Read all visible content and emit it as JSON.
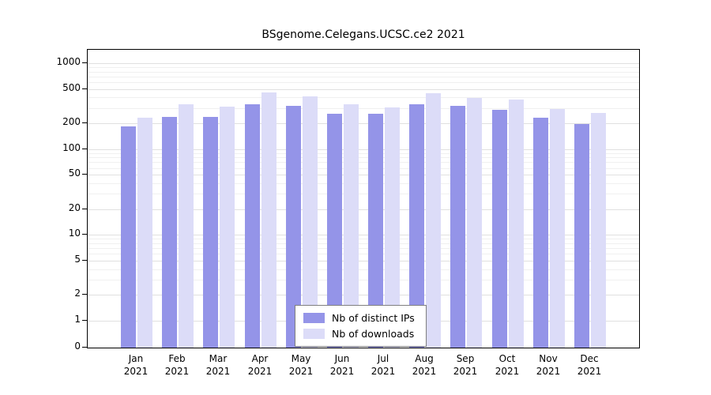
{
  "chart_data": {
    "type": "bar",
    "title": "BSgenome.Celegans.UCSC.ce2 2021",
    "categories": [
      "Jan",
      "Feb",
      "Mar",
      "Apr",
      "May",
      "Jun",
      "Jul",
      "Aug",
      "Sep",
      "Oct",
      "Nov",
      "Dec"
    ],
    "year_label": "2021",
    "series": [
      {
        "name": "Nb of distinct IPs",
        "color": "#9494e8",
        "values": [
          185,
          235,
          235,
          335,
          320,
          255,
          255,
          335,
          320,
          285,
          230,
          195
        ]
      },
      {
        "name": "Nb of downloads",
        "color": "#dcdcf8",
        "values": [
          230,
          330,
          315,
          455,
          415,
          330,
          305,
          450,
          390,
          375,
          290,
          265
        ]
      }
    ],
    "yticks": [
      1000,
      500,
      200,
      100,
      50,
      20,
      10,
      5,
      2,
      1,
      0
    ],
    "minor_yticks": [
      3,
      4,
      6,
      7,
      8,
      9,
      30,
      40,
      60,
      70,
      80,
      90,
      300,
      400,
      600,
      700,
      800,
      900
    ],
    "ylim": [
      0,
      1000
    ],
    "yscale": "log",
    "grid": true,
    "legend_position": "bottom-center",
    "xlabel": "",
    "ylabel": ""
  }
}
